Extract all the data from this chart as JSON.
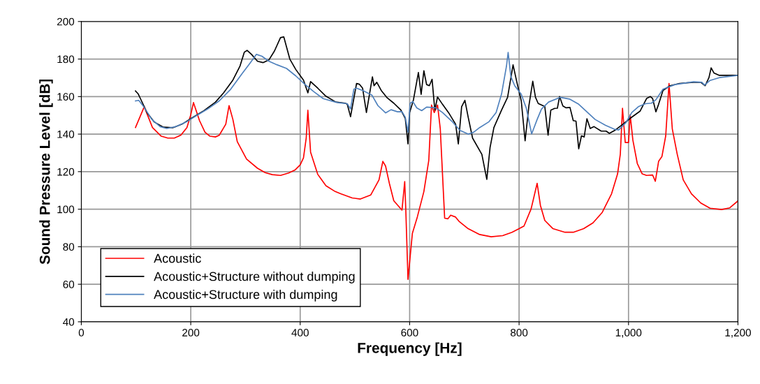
{
  "chart_data": {
    "type": "line",
    "xlabel": "Frequency [Hz]",
    "ylabel": "Sound Pressure Level [dB]",
    "xlim": [
      0,
      1200
    ],
    "xticks": [
      0,
      200,
      400,
      600,
      800,
      {
        "value": 1000,
        "label": "1,000"
      },
      {
        "value": 1200,
        "label": "1,200"
      }
    ],
    "ylim": [
      40,
      200
    ],
    "yticks": [
      40,
      60,
      80,
      100,
      120,
      140,
      160,
      180,
      200
    ],
    "grid": true,
    "legend": "bottom left",
    "marker": "none",
    "line_style": "solid",
    "series": [
      {
        "name": "Acoustic",
        "color": "#ff0000",
        "x": [
          99,
          115,
          130,
          146,
          158,
          170,
          182,
          193,
          200,
          205,
          216,
          226,
          235,
          245,
          252,
          264,
          270,
          277,
          285,
          302,
          322,
          336,
          349,
          364,
          379,
          391,
          400,
          406,
          411,
          414,
          419,
          432,
          447,
          464,
          474,
          495,
          510,
          529,
          544,
          551,
          556,
          563,
          571,
          586,
          591,
          593,
          597,
          605,
          614,
          626,
          635,
          640,
          645,
          651,
          656,
          664,
          670,
          675,
          684,
          690,
          707,
          728,
          749,
          770,
          787,
          800,
          809,
          822,
          833,
          839,
          847,
          862,
          884,
          899,
          918,
          935,
          952,
          969,
          980,
          985,
          989,
          994,
          1000,
          1003,
          1008,
          1016,
          1025,
          1033,
          1044,
          1049,
          1055,
          1061,
          1068,
          1074,
          1080,
          1089,
          1100,
          1115,
          1132,
          1149,
          1170,
          1185,
          1200
        ],
        "values": [
          143.5,
          154.6,
          143.5,
          138.9,
          137.9,
          137.9,
          139.5,
          143.5,
          150.3,
          156.8,
          147.2,
          141,
          138.9,
          138.5,
          139.4,
          145.3,
          155.2,
          147.8,
          136,
          126.7,
          121.8,
          119.5,
          118.4,
          118,
          119.3,
          121,
          123.6,
          127.3,
          137.9,
          152.7,
          130.4,
          118.6,
          112.5,
          109.4,
          108.2,
          106,
          105.4,
          107.6,
          115.6,
          125.5,
          123,
          113.7,
          104.5,
          99.5,
          114.7,
          99.5,
          62.6,
          87.1,
          95.8,
          109.4,
          126,
          155.5,
          151.5,
          155.5,
          142.8,
          95.2,
          94.9,
          96.8,
          95.8,
          93.6,
          89.6,
          86.5,
          85.3,
          85.9,
          87.7,
          89.6,
          91,
          100.2,
          113.8,
          102,
          94,
          89.6,
          87.7,
          87.7,
          89.6,
          92.7,
          98.3,
          108.2,
          118.8,
          129.3,
          153.8,
          135.5,
          135.5,
          150.3,
          136.7,
          124.4,
          118.8,
          118,
          118.2,
          114.9,
          125.5,
          128,
          139.1,
          167,
          142.8,
          129.3,
          115.6,
          108.2,
          103.3,
          100.5,
          99.8,
          100.7,
          104.4
        ]
      },
      {
        "name": "Acoustic+Structure without dumping",
        "color": "#000000",
        "x": [
          99,
          104,
          110,
          120,
          133,
          150,
          167,
          184,
          201,
          222,
          245,
          260,
          277,
          290,
          298,
          303,
          311,
          322,
          332,
          343,
          353,
          364,
          370,
          381,
          392,
          406,
          414,
          419,
          432,
          447,
          465,
          482,
          486,
          492,
          503,
          508,
          514,
          521,
          532,
          535,
          540,
          548,
          559,
          571,
          584,
          592,
          597,
          600,
          607,
          616,
          621,
          626,
          631,
          636,
          641,
          646,
          651,
          660,
          671,
          684,
          689,
          695,
          701,
          707,
          715,
          732,
          741,
          747,
          754,
          768,
          779,
          789,
          796,
          804,
          811,
          818,
          825,
          830,
          835,
          847,
          853,
          858,
          865,
          870,
          874,
          880,
          886,
          893,
          899,
          904,
          909,
          914,
          919,
          924,
          930,
          937,
          950,
          959,
          965,
          976,
          991,
          1003,
          1021,
          1033,
          1040,
          1044,
          1050,
          1055,
          1063,
          1076,
          1093,
          1119,
          1132,
          1140,
          1147,
          1151,
          1156,
          1166,
          1200
        ],
        "values": [
          163,
          161.4,
          157.7,
          151.5,
          146.5,
          143.7,
          143.4,
          145.3,
          148.4,
          152.1,
          157,
          162,
          168.8,
          176.3,
          183.7,
          184.6,
          182.5,
          178.8,
          178.1,
          179.6,
          184.3,
          191.4,
          191.8,
          180,
          174.4,
          168.8,
          162,
          168,
          164.5,
          160.2,
          157.1,
          156.5,
          155.9,
          149.3,
          167,
          166.6,
          164.5,
          151.5,
          170.5,
          165.8,
          167.6,
          163.3,
          159.3,
          156.5,
          152.8,
          148.4,
          134.8,
          151.5,
          158.3,
          172.8,
          161.2,
          173.8,
          166.4,
          165.8,
          169.2,
          152.8,
          159.8,
          155.9,
          151.5,
          145.3,
          134.8,
          154.6,
          158,
          149,
          137.9,
          129.2,
          115.9,
          132.9,
          143.5,
          152.8,
          159.6,
          176.9,
          167.6,
          157.7,
          136.4,
          155.2,
          168.2,
          159.6,
          156.3,
          154.7,
          139.4,
          152.8,
          153.7,
          153.8,
          160,
          155,
          154,
          154.2,
          147.2,
          146.9,
          132.2,
          139.1,
          138.5,
          148.2,
          143,
          144,
          141.6,
          141.6,
          140.4,
          142.2,
          145.6,
          148.4,
          152.2,
          159,
          160,
          159,
          151.9,
          155.9,
          163.3,
          165.8,
          167,
          167.6,
          167.6,
          165.8,
          170.1,
          175.3,
          172.6,
          171.3,
          171.3
        ]
      },
      {
        "name": "Acoustic+Structure with dumping",
        "color": "#4f81bd",
        "x": [
          99,
          105,
          114,
          129,
          144,
          156,
          173,
          192,
          209,
          231,
          252,
          273,
          294,
          309,
          320,
          330,
          343,
          358,
          375,
          392,
          409,
          425,
          442,
          464,
          470,
          486,
          492,
          498,
          503,
          516,
          531,
          542,
          556,
          566,
          578,
          586,
          592,
          597,
          601,
          606,
          613,
          622,
          631,
          648,
          660,
          677,
          692,
          707,
          717,
          728,
          745,
          758,
          768,
          777,
          780,
          785,
          792,
          804,
          813,
          823,
          833,
          841,
          854,
          875,
          892,
          909,
          939,
          958,
          974,
          982,
          995,
          1006,
          1018,
          1031,
          1042,
          1050,
          1063,
          1085,
          1119,
          1134,
          1139,
          1149,
          1166,
          1200
        ],
        "values": [
          157.7,
          158,
          154.6,
          147.8,
          144,
          143,
          144,
          146.5,
          149.6,
          153.4,
          157.7,
          163.9,
          172.3,
          178.1,
          182.5,
          181.5,
          178.8,
          176.9,
          175,
          171,
          166.4,
          162.6,
          158.9,
          157.1,
          156.7,
          156.2,
          153.4,
          163.9,
          164.5,
          163,
          160.8,
          155.2,
          151.3,
          153,
          151.9,
          152,
          149,
          141,
          156.5,
          157.3,
          154,
          152.5,
          154.4,
          154,
          151.5,
          146.9,
          142,
          140,
          141,
          143.5,
          146.6,
          151.5,
          161.4,
          176.3,
          183.5,
          170.7,
          165.8,
          161.2,
          154,
          140.1,
          147.8,
          153.4,
          157.1,
          159.6,
          158.7,
          155.9,
          147.8,
          144.7,
          142.6,
          142.2,
          146,
          151.5,
          154.6,
          156.2,
          156.5,
          158.3,
          163.9,
          166.4,
          167.9,
          167.6,
          166.1,
          168.6,
          170.1,
          171.3
        ]
      }
    ]
  }
}
